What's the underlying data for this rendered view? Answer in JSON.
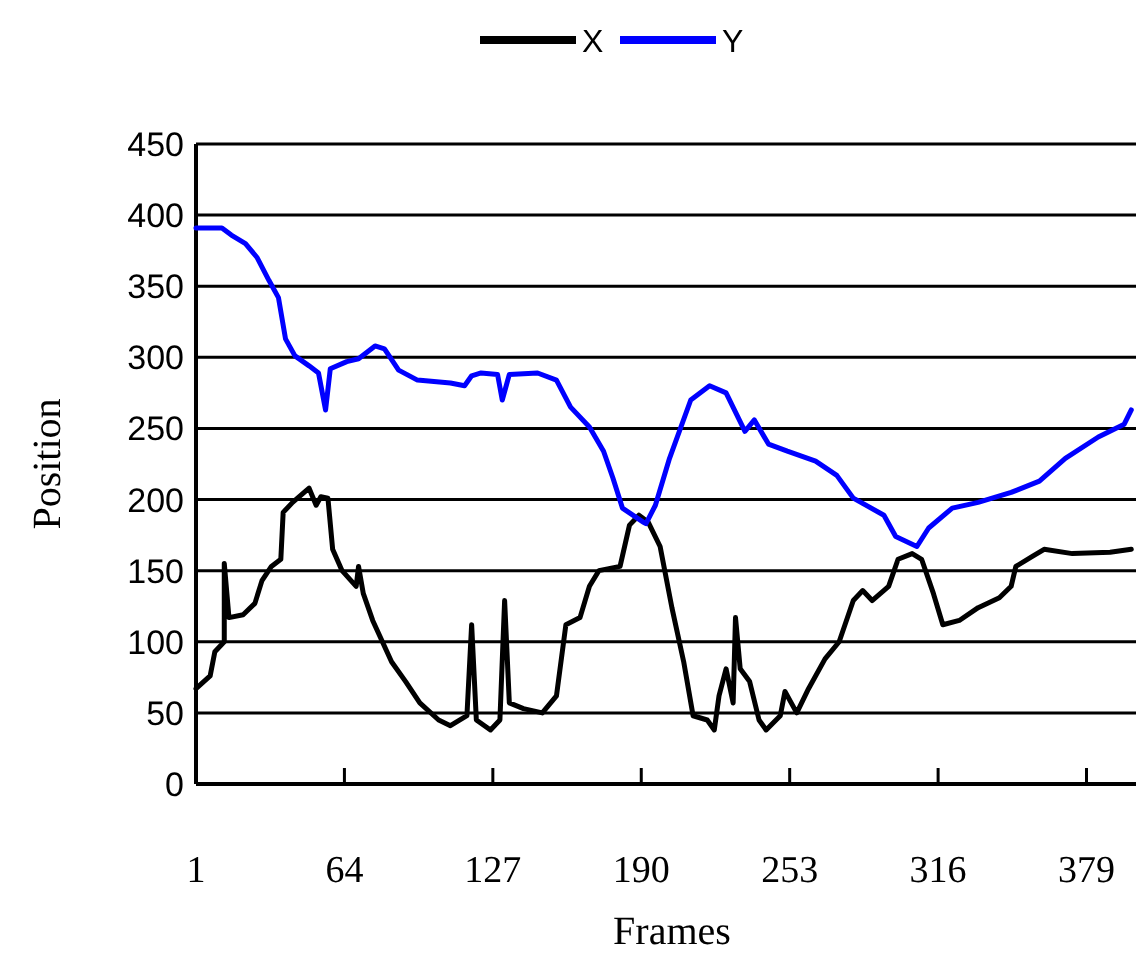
{
  "chart_data": {
    "type": "line",
    "xlabel": "Frames",
    "ylabel": "Position",
    "xlim": [
      1,
      400
    ],
    "xticks": [
      1,
      64,
      127,
      190,
      253,
      316,
      379
    ],
    "ylim": [
      0,
      450
    ],
    "yticks": [
      0,
      50,
      100,
      150,
      200,
      250,
      300,
      350,
      400,
      450
    ],
    "grid": "y",
    "legend": "top",
    "marker": "none",
    "line_style": "solid",
    "series": [
      {
        "name": "X",
        "color": "#000000",
        "x": [
          1,
          7,
          9,
          13,
          13,
          15,
          21,
          26,
          29,
          33,
          37,
          38,
          42,
          49,
          52,
          54,
          57,
          59,
          63,
          69,
          70,
          72,
          76,
          84,
          90,
          96,
          104,
          109,
          116,
          118,
          120,
          126,
          130,
          132,
          134,
          140,
          148,
          154,
          158,
          164,
          168,
          172,
          181,
          185,
          189,
          193,
          198,
          203,
          208,
          212,
          218,
          221,
          223,
          226,
          229,
          230,
          232,
          236,
          240,
          243,
          249,
          251,
          256,
          261,
          268,
          274,
          280,
          284,
          288,
          295,
          299,
          305,
          309,
          314,
          318,
          325,
          333,
          342,
          347,
          349,
          356,
          361,
          373,
          389,
          398
        ],
        "values": [
          67,
          76,
          93,
          100,
          155,
          117,
          119,
          127,
          143,
          153,
          158,
          191,
          198,
          208,
          196,
          202,
          201,
          165,
          150,
          139,
          153,
          134,
          115,
          86,
          72,
          57,
          45,
          41,
          48,
          112,
          45,
          38,
          45,
          129,
          57,
          53,
          50,
          62,
          112,
          117,
          139,
          150,
          153,
          182,
          189,
          184,
          167,
          124,
          86,
          48,
          45,
          38,
          62,
          81,
          57,
          117,
          81,
          72,
          45,
          38,
          48,
          65,
          50,
          67,
          88,
          100,
          129,
          136,
          129,
          139,
          158,
          162,
          158,
          134,
          112,
          115,
          124,
          131,
          139,
          153,
          160,
          165,
          162,
          163,
          165
        ]
      },
      {
        "name": "Y",
        "color": "#0000ff",
        "x": [
          1,
          12,
          16,
          22,
          27,
          32,
          36,
          39,
          43,
          49,
          53,
          56,
          58,
          65,
          70,
          77,
          81,
          87,
          95,
          109,
          115,
          118,
          122,
          129,
          131,
          134,
          146,
          154,
          160,
          168,
          174,
          178,
          182,
          191,
          192,
          196,
          202,
          211,
          219,
          226,
          234,
          238,
          244,
          252,
          264,
          273,
          280,
          293,
          298,
          307,
          312,
          322,
          333,
          347,
          359,
          370,
          384,
          395,
          398
        ],
        "values": [
          391,
          391,
          386,
          380,
          370,
          354,
          342,
          313,
          301,
          294,
          289,
          263,
          292,
          297,
          299,
          308,
          306,
          291,
          284,
          282,
          280,
          287,
          289,
          288,
          270,
          288,
          289,
          284,
          265,
          251,
          234,
          215,
          194,
          184,
          183,
          196,
          229,
          270,
          280,
          275,
          248,
          256,
          239,
          234,
          227,
          217,
          201,
          189,
          174,
          167,
          180,
          194,
          198,
          205,
          213,
          229,
          244,
          253,
          263
        ]
      }
    ]
  }
}
